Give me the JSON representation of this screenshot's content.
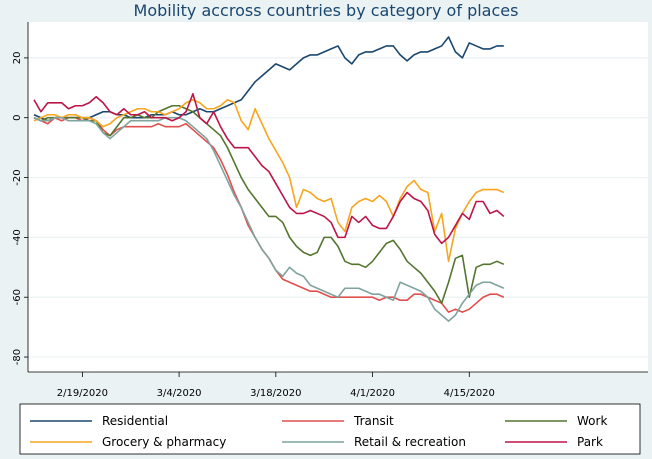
{
  "chart_data": {
    "type": "line",
    "title": "Mobility accross countries by category of places",
    "xlabel": "",
    "ylabel": "",
    "ylim": [
      -85,
      32
    ],
    "yticks": [
      20,
      0,
      -20,
      -40,
      -60,
      -80
    ],
    "ytick_labels": [
      "20",
      "0",
      "-20",
      "-40",
      "-60",
      "-80"
    ],
    "xlim": [
      0,
      88
    ],
    "xticks": [
      [
        7,
        "2/19/2020"
      ],
      [
        21,
        "3/4/2020"
      ],
      [
        35,
        "3/18/2020"
      ],
      [
        49,
        "4/1/2020"
      ],
      [
        63,
        "4/15/2020"
      ]
    ],
    "xstart": 0,
    "legend_position": "bottom",
    "series": [
      {
        "name": "Residential",
        "color": "#1a476f",
        "values": [
          1,
          0,
          -1,
          0,
          0,
          0,
          0,
          0,
          0,
          1,
          2,
          2,
          1,
          1,
          0,
          0,
          0,
          1,
          1,
          1,
          2,
          1,
          1,
          2,
          3,
          2,
          2,
          3,
          4,
          5,
          6,
          9,
          12,
          14,
          16,
          18,
          17,
          16,
          18,
          20,
          21,
          21,
          22,
          23,
          24,
          20,
          18,
          21,
          22,
          22,
          23,
          24,
          24,
          21,
          19,
          21,
          22,
          22,
          23,
          24,
          27,
          22,
          20,
          25,
          24,
          23,
          23,
          24,
          24
        ]
      },
      {
        "name": "Transit",
        "color": "#e0504f",
        "values": [
          0,
          -1,
          -2,
          0,
          -1,
          0,
          0,
          -1,
          0,
          -1,
          -4,
          -6,
          -4,
          -3,
          -3,
          -3,
          -3,
          -3,
          -2,
          -3,
          -3,
          -3,
          -2,
          -4,
          -6,
          -8,
          -10,
          -14,
          -19,
          -25,
          -30,
          -36,
          -40,
          -44,
          -47,
          -51,
          -54,
          -55,
          -56,
          -57,
          -58,
          -58,
          -59,
          -60,
          -60,
          -60,
          -60,
          -60,
          -60,
          -60,
          -61,
          -60,
          -60,
          -61,
          -61,
          -59,
          -59,
          -60,
          -61,
          -62,
          -65,
          -64,
          -65,
          -64,
          -62,
          -60,
          -59,
          -59,
          -60
        ]
      },
      {
        "name": "Work",
        "color": "#55752f",
        "values": [
          0,
          -1,
          0,
          0,
          0,
          0,
          0,
          0,
          -1,
          -1,
          -5,
          -6,
          -3,
          0,
          0,
          1,
          0,
          0,
          2,
          3,
          4,
          4,
          3,
          2,
          0,
          -2,
          -4,
          -6,
          -10,
          -15,
          -20,
          -24,
          -27,
          -30,
          -33,
          -33,
          -35,
          -40,
          -43,
          -45,
          -46,
          -45,
          -40,
          -40,
          -43,
          -48,
          -49,
          -49,
          -50,
          -48,
          -45,
          -42,
          -41,
          -44,
          -48,
          -50,
          -52,
          -55,
          -58,
          -62,
          -55,
          -47,
          -46,
          -60,
          -50,
          -49,
          -49,
          -48,
          -49
        ]
      },
      {
        "name": "Grocery & pharmacy",
        "color": "#f8a51f",
        "values": [
          -1,
          0,
          1,
          1,
          0,
          1,
          1,
          0,
          0,
          -1,
          -3,
          -2,
          0,
          1,
          2,
          3,
          3,
          2,
          2,
          1,
          2,
          3,
          5,
          6,
          5,
          3,
          3,
          4,
          6,
          5,
          -1,
          -4,
          3,
          -2,
          -7,
          -11,
          -15,
          -20,
          -30,
          -24,
          -25,
          -27,
          -28,
          -27,
          -35,
          -38,
          -30,
          -28,
          -27,
          -28,
          -26,
          -28,
          -33,
          -27,
          -23,
          -21,
          -24,
          -25,
          -38,
          -32,
          -48,
          -37,
          -32,
          -28,
          -25,
          -24,
          -24,
          -24,
          -25
        ]
      },
      {
        "name": "Retail & recreation",
        "color": "#7fa39e",
        "values": [
          0,
          -1,
          -1,
          0,
          0,
          -1,
          -1,
          -1,
          -1,
          -2,
          -5,
          -7,
          -5,
          -3,
          -1,
          -1,
          -1,
          -1,
          -1,
          0,
          0,
          0,
          -1,
          -3,
          -5,
          -7,
          -11,
          -16,
          -21,
          -26,
          -30,
          -35,
          -40,
          -44,
          -47,
          -51,
          -53,
          -50,
          -52,
          -53,
          -56,
          -57,
          -58,
          -59,
          -60,
          -57,
          -57,
          -57,
          -58,
          -59,
          -59,
          -60,
          -61,
          -55,
          -56,
          -57,
          -58,
          -60,
          -64,
          -66,
          -68,
          -66,
          -62,
          -59,
          -56,
          -55,
          -55,
          -56,
          -57
        ]
      },
      {
        "name": "Park",
        "color": "#bd1548",
        "values": [
          6,
          2,
          5,
          5,
          5,
          3,
          4,
          4,
          5,
          7,
          5,
          2,
          1,
          3,
          1,
          1,
          2,
          0,
          0,
          0,
          -1,
          0,
          2,
          8,
          0,
          -2,
          2,
          -3,
          -7,
          -10,
          -10,
          -10,
          -13,
          -16,
          -18,
          -22,
          -26,
          -30,
          -32,
          -32,
          -31,
          -32,
          -33,
          -35,
          -40,
          -40,
          -33,
          -35,
          -33,
          -36,
          -37,
          -37,
          -33,
          -28,
          -25,
          -27,
          -28,
          -31,
          -39,
          -42,
          -40,
          -36,
          -32,
          -34,
          -28,
          -28,
          -32,
          -31,
          -33
        ]
      }
    ]
  }
}
